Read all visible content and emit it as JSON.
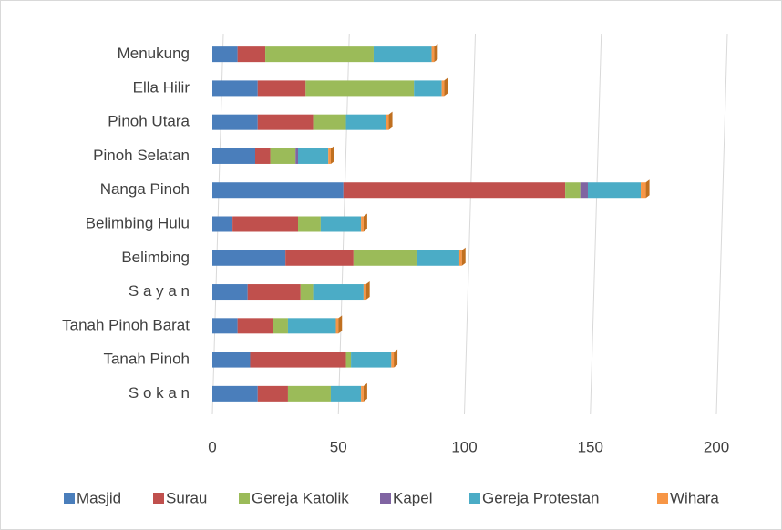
{
  "chart_data": {
    "type": "stacked_bar_horizontal",
    "categories": [
      "Menukung",
      "Ella Hilir",
      "Pinoh Utara",
      "Pinoh Selatan",
      "Nanga Pinoh",
      "Belimbing Hulu",
      "Belimbing",
      "S a y a n",
      "Tanah Pinoh Barat",
      "Tanah Pinoh",
      "S o k a n"
    ],
    "series": [
      {
        "name": "Masjid",
        "color": "#4a7ebb",
        "values": [
          10,
          18,
          18,
          17,
          52,
          8,
          29,
          14,
          10,
          15,
          18
        ]
      },
      {
        "name": "Surau",
        "color": "#c0504d",
        "values": [
          11,
          19,
          22,
          6,
          88,
          26,
          27,
          21,
          14,
          38,
          12
        ]
      },
      {
        "name": "Gereja Katolik",
        "color": "#9bbb59",
        "values": [
          43,
          43,
          13,
          10,
          6,
          9,
          25,
          5,
          6,
          2,
          17
        ]
      },
      {
        "name": "Kapel",
        "color": "#8064a2",
        "values": [
          0,
          0,
          0,
          1,
          3,
          0,
          0,
          0,
          0,
          0,
          0
        ]
      },
      {
        "name": "Gereja Protestan",
        "color": "#4bacc6",
        "values": [
          23,
          11,
          16,
          12,
          21,
          16,
          17,
          20,
          19,
          16,
          12
        ]
      },
      {
        "name": "Wihara",
        "color": "#f79646",
        "values": [
          1,
          1,
          1,
          1,
          2,
          1,
          1,
          1,
          1,
          1,
          1
        ]
      }
    ],
    "xlim": [
      0,
      200
    ],
    "xticks": [
      0,
      50,
      100,
      150,
      200
    ],
    "grid": true,
    "legend": "bottom"
  }
}
